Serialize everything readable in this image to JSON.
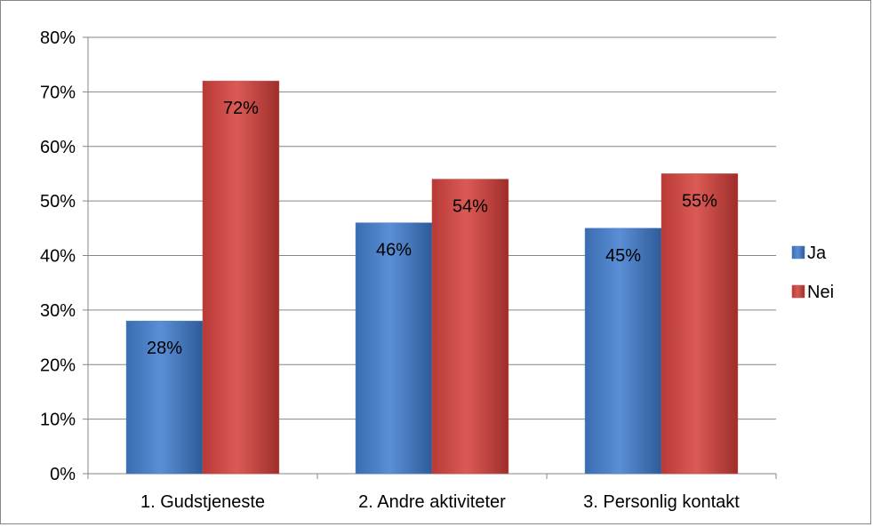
{
  "chart_data": {
    "type": "bar",
    "categories": [
      "1. Gudstjeneste",
      "2. Andre aktiviteter",
      "3. Personlig kontakt"
    ],
    "series": [
      {
        "name": "Ja",
        "values": [
          28,
          46,
          45
        ],
        "labels": [
          "28%",
          "46%",
          "45%"
        ],
        "color": "#4a7ebb"
      },
      {
        "name": "Nei",
        "values": [
          72,
          54,
          55
        ],
        "labels": [
          "72%",
          "54%",
          "55%"
        ],
        "color": "#c0504d"
      }
    ],
    "ylim": [
      0,
      80
    ],
    "yticks": [
      0,
      10,
      20,
      30,
      40,
      50,
      60,
      70,
      80
    ],
    "ytick_labels": [
      "0%",
      "10%",
      "20%",
      "30%",
      "40%",
      "50%",
      "60%",
      "70%",
      "80%"
    ],
    "grid": true,
    "legend_position": "right"
  }
}
